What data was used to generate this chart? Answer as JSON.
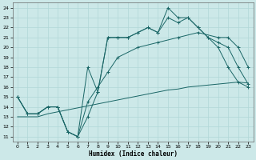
{
  "title": "",
  "xlabel": "Humidex (Indice chaleur)",
  "bg_color": "#cce8e8",
  "line_color": "#1a6666",
  "grid_color": "#b0d8d8",
  "xlim": [
    -0.5,
    23.5
  ],
  "ylim": [
    10.5,
    24.5
  ],
  "xticks": [
    0,
    1,
    2,
    3,
    4,
    5,
    6,
    7,
    8,
    9,
    10,
    11,
    12,
    13,
    14,
    15,
    16,
    17,
    18,
    19,
    20,
    21,
    22,
    23
  ],
  "yticks": [
    11,
    12,
    13,
    14,
    15,
    16,
    17,
    18,
    19,
    20,
    21,
    22,
    23,
    24
  ],
  "series1_x": [
    0,
    1,
    2,
    3,
    4,
    5,
    6,
    7,
    8,
    9,
    10,
    11,
    12,
    13,
    14,
    15,
    16,
    17,
    18,
    19,
    20,
    21,
    22,
    23
  ],
  "series1_y": [
    15,
    13.3,
    13.3,
    14,
    14,
    11.5,
    11,
    13,
    15.5,
    21,
    21,
    21,
    21.5,
    22,
    21.5,
    23,
    22.5,
    23,
    22,
    21,
    20,
    18,
    16.5,
    16
  ],
  "series2_x": [
    0,
    1,
    2,
    3,
    4,
    5,
    6,
    7,
    8,
    9,
    10,
    11,
    12,
    13,
    14,
    15,
    16,
    17,
    18,
    19,
    20,
    21,
    22,
    23
  ],
  "series2_y": [
    15,
    13.3,
    13.3,
    14,
    14,
    11.5,
    11,
    18,
    15.5,
    21,
    21,
    21,
    21.5,
    22,
    21.5,
    24,
    23,
    23,
    22,
    21,
    20.5,
    20,
    18,
    16.3
  ],
  "series3_x": [
    0,
    1,
    2,
    3,
    4,
    5,
    6,
    7,
    8,
    9,
    10,
    12,
    14,
    16,
    18,
    20,
    21,
    22,
    23
  ],
  "series3_y": [
    15,
    13.3,
    13.3,
    14,
    14,
    11.5,
    11,
    14.5,
    16,
    17.5,
    19,
    20,
    20.5,
    21,
    21.5,
    21,
    21,
    20,
    18
  ],
  "series4_x": [
    0,
    1,
    2,
    3,
    4,
    5,
    6,
    7,
    8,
    9,
    10,
    11,
    12,
    13,
    14,
    15,
    16,
    17,
    18,
    19,
    20,
    21,
    22,
    23
  ],
  "series4_y": [
    13,
    13,
    13,
    13.3,
    13.5,
    13.7,
    13.9,
    14.1,
    14.3,
    14.5,
    14.7,
    14.9,
    15.1,
    15.3,
    15.5,
    15.7,
    15.8,
    16.0,
    16.1,
    16.2,
    16.3,
    16.4,
    16.5,
    16.4
  ]
}
